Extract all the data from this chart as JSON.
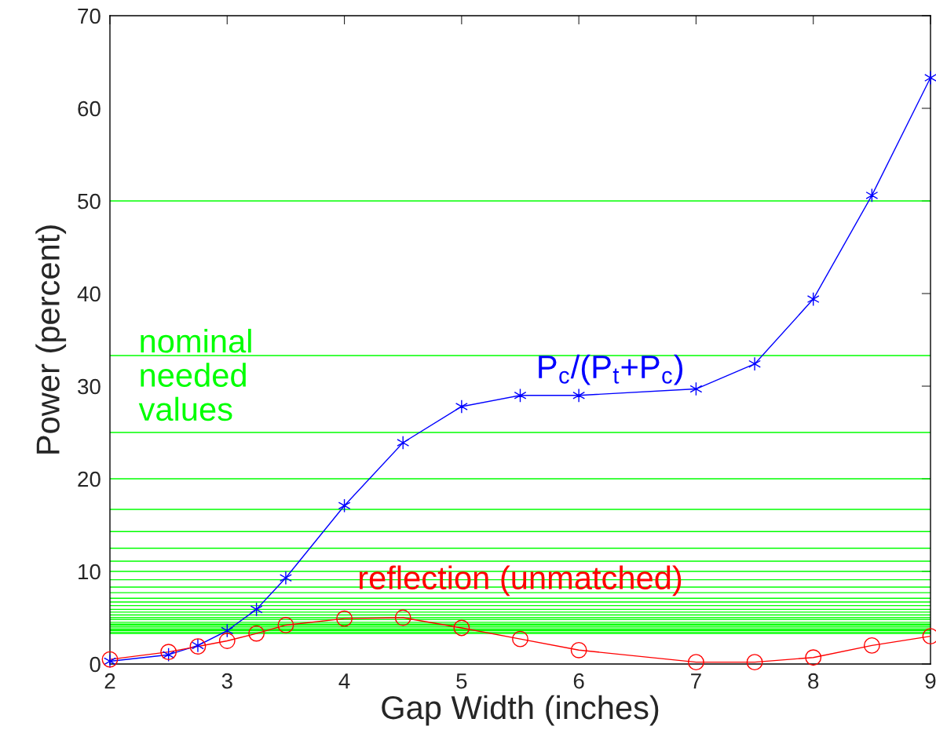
{
  "chart_data": {
    "type": "line",
    "xlabel": "Gap Width (inches)",
    "ylabel": "Power (percent)",
    "xlim": [
      2,
      9
    ],
    "xticks": [
      2,
      3,
      4,
      5,
      6,
      7,
      8,
      9
    ],
    "ylim": [
      0,
      70
    ],
    "yticks": [
      0,
      10,
      20,
      30,
      40,
      50,
      60,
      70
    ],
    "grid": false,
    "legend": false,
    "series": [
      {
        "name": "P$_{c}$/(P$_{t}$+P$_{c}$)",
        "color": "#0000ff",
        "marker": "cross",
        "x": [
          2,
          2.5,
          2.75,
          3,
          3.25,
          3.5,
          4,
          4.5,
          5,
          5.5,
          6,
          7,
          7.5,
          8,
          8.5,
          9
        ],
        "values": [
          0.3,
          1.0,
          2.0,
          3.6,
          5.9,
          9.3,
          17.1,
          23.9,
          27.8,
          29.0,
          29.0,
          29.7,
          32.4,
          39.4,
          50.6,
          63.3
        ]
      },
      {
        "name": "reflection (unmatched)",
        "color": "#ff0000",
        "marker": "circle",
        "x": [
          2,
          2.5,
          2.75,
          3,
          3.25,
          3.5,
          4,
          4.5,
          5,
          5.5,
          6,
          7,
          7.5,
          8,
          8.5,
          9
        ],
        "values": [
          0.5,
          1.3,
          1.9,
          2.5,
          3.3,
          4.2,
          4.9,
          5.0,
          3.9,
          2.7,
          1.5,
          0.2,
          0.2,
          0.7,
          2.0,
          3.0
        ]
      }
    ],
    "ref_lines": [
      {
        "axis": "y",
        "value": 50,
        "color": "#00ff00"
      },
      {
        "axis": "y",
        "value": 33.3,
        "color": "#00ff00"
      },
      {
        "axis": "y",
        "value": 25,
        "color": "#00ff00"
      },
      {
        "axis": "y",
        "value": 20,
        "color": "#00ff00"
      },
      {
        "axis": "y",
        "value": 16.7,
        "color": "#00ff00"
      },
      {
        "axis": "y",
        "value": 14.3,
        "color": "#00ff00"
      },
      {
        "axis": "y",
        "value": 12.5,
        "color": "#00ff00"
      },
      {
        "axis": "y",
        "value": 11.1,
        "color": "#00ff00"
      },
      {
        "axis": "y",
        "value": 10,
        "color": "#00ff00"
      },
      {
        "axis": "y",
        "value": 9.1,
        "color": "#00ff00"
      },
      {
        "axis": "y",
        "value": 8.3,
        "color": "#00ff00"
      },
      {
        "axis": "y",
        "value": 7.7,
        "color": "#00ff00"
      },
      {
        "axis": "y",
        "value": 7.1,
        "color": "#00ff00"
      },
      {
        "axis": "y",
        "value": 6.7,
        "color": "#00ff00"
      },
      {
        "axis": "y",
        "value": 6.3,
        "color": "#00ff00"
      },
      {
        "axis": "y",
        "value": 5.9,
        "color": "#00ff00"
      },
      {
        "axis": "y",
        "value": 5.6,
        "color": "#00ff00"
      },
      {
        "axis": "y",
        "value": 5.3,
        "color": "#00ff00"
      },
      {
        "axis": "y",
        "value": 5,
        "color": "#00ff00"
      },
      {
        "axis": "y",
        "value": 4.8,
        "color": "#00ff00"
      },
      {
        "axis": "y",
        "value": 4.5,
        "color": "#00ff00"
      },
      {
        "axis": "y",
        "value": 4.3,
        "color": "#00ff00"
      },
      {
        "axis": "y",
        "value": 4.2,
        "color": "#00ff00"
      },
      {
        "axis": "y",
        "value": 4,
        "color": "#00ff00"
      },
      {
        "axis": "y",
        "value": 3.8,
        "color": "#00ff00"
      },
      {
        "axis": "y",
        "value": 3.7,
        "color": "#00ff00"
      },
      {
        "axis": "y",
        "value": 3.6,
        "color": "#00ff00"
      },
      {
        "axis": "y",
        "value": 3.4,
        "color": "#00ff00"
      },
      {
        "axis": "y",
        "value": 3.3,
        "color": "#00ff00"
      }
    ],
    "annotations": [
      "nominal\nneeded\nvalues"
    ]
  }
}
